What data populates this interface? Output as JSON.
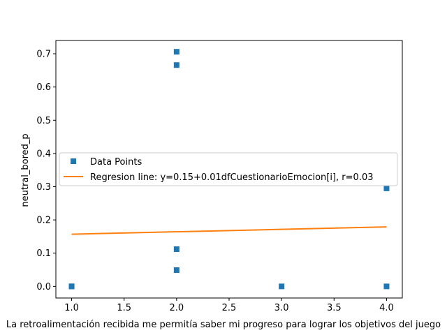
{
  "chart_data": {
    "type": "scatter",
    "xlabel": "La retroalimentación recibida  me permitía saber mi progreso para lograr los objetivos del juego",
    "ylabel": "neutral_bored_p",
    "xlim": [
      0.85,
      4.15
    ],
    "ylim": [
      -0.035,
      0.74
    ],
    "xticks": [
      "1.0",
      "1.5",
      "2.0",
      "2.5",
      "3.0",
      "3.5",
      "4.0"
    ],
    "yticks": [
      "0.0",
      "0.1",
      "0.2",
      "0.3",
      "0.4",
      "0.5",
      "0.6",
      "0.7"
    ],
    "grid": false,
    "legend_position": "center-left",
    "series": [
      {
        "name": "Data Points",
        "kind": "scatter",
        "marker": "square",
        "color": "#1f77b4",
        "points": [
          {
            "x": 1.0,
            "y": 0.0
          },
          {
            "x": 1.0,
            "y": 0.0
          },
          {
            "x": 2.0,
            "y": 0.706
          },
          {
            "x": 2.0,
            "y": 0.666
          },
          {
            "x": 2.0,
            "y": 0.112
          },
          {
            "x": 2.0,
            "y": 0.049
          },
          {
            "x": 3.0,
            "y": 0.0
          },
          {
            "x": 4.0,
            "y": 0.295
          },
          {
            "x": 4.0,
            "y": 0.0
          }
        ]
      },
      {
        "name": "Regresion line: y=0.15+0.01dfCuestionarioEmocion[i], r=0.03",
        "kind": "line",
        "color": "#ff7f0e",
        "points": [
          {
            "x": 1.0,
            "y": 0.157
          },
          {
            "x": 4.0,
            "y": 0.179
          }
        ]
      }
    ]
  }
}
